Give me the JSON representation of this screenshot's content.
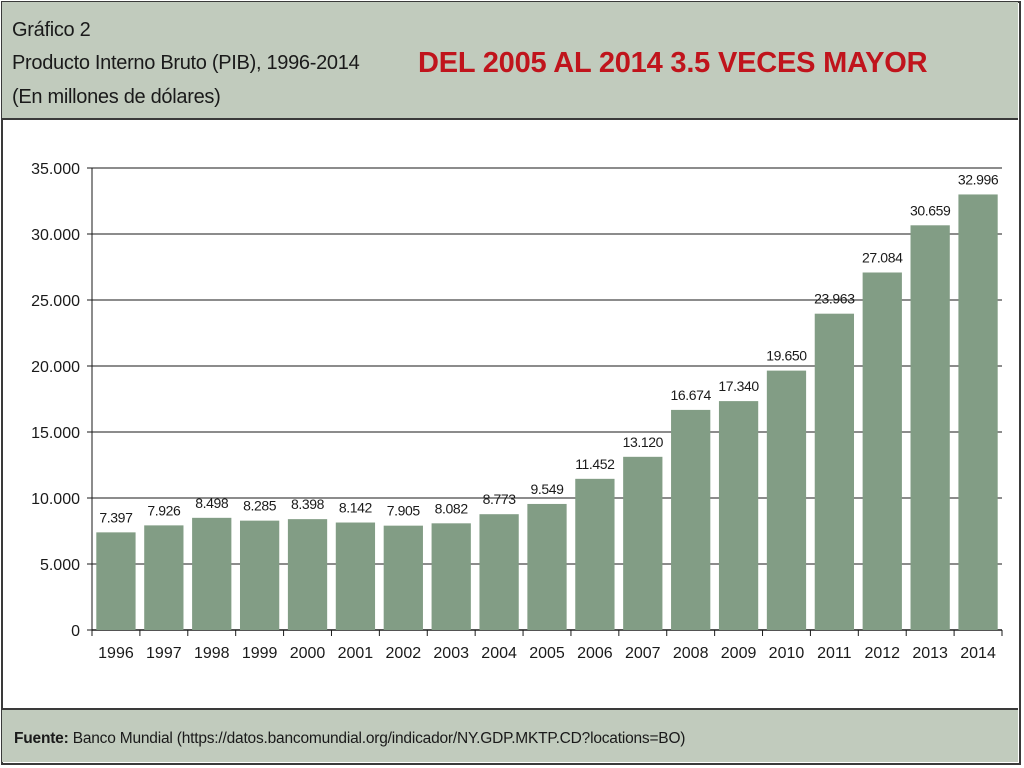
{
  "header": {
    "line1": "Gráfico 2",
    "line2": "Producto Interno Bruto (PIB), 1996-2014",
    "line3": "(En millones de dólares)",
    "highlight": "DEL 2005 AL 2014 3.5 VECES MAYOR"
  },
  "footer": {
    "label": "Fuente:",
    "text": "Banco Mundial (https://datos.bancomundial.org/indicador/NY.GDP.MKTP.CD?locations=BO)"
  },
  "colors": {
    "bar": "#829d85",
    "header_bg": "#c1cbbd",
    "highlight": "#c0141c"
  },
  "chart_data": {
    "type": "bar",
    "title": "Producto Interno Bruto (PIB), 1996-2014",
    "xlabel": "",
    "ylabel": "",
    "categories": [
      "1996",
      "1997",
      "1998",
      "1999",
      "2000",
      "2001",
      "2002",
      "2003",
      "2004",
      "2005",
      "2006",
      "2007",
      "2008",
      "2009",
      "2010",
      "2011",
      "2012",
      "2013",
      "2014"
    ],
    "values": [
      7397,
      7926,
      8498,
      8285,
      8398,
      8142,
      7905,
      8082,
      8773,
      9549,
      11452,
      13120,
      16674,
      17340,
      19650,
      23963,
      27084,
      30659,
      32996
    ],
    "value_labels": [
      "7.397",
      "7.926",
      "8.498",
      "8.285",
      "8.398",
      "8.142",
      "7.905",
      "8.082",
      "8.773",
      "9.549",
      "11.452",
      "13.120",
      "16.674",
      "17.340",
      "19.650",
      "23.963",
      "27.084",
      "30.659",
      "32.996"
    ],
    "y_ticks": [
      0,
      5000,
      10000,
      15000,
      20000,
      25000,
      30000,
      35000
    ],
    "y_tick_labels": [
      "0",
      "5.000",
      "10.000",
      "15.000",
      "20.000",
      "25.000",
      "30.000",
      "35.000"
    ],
    "ylim": [
      0,
      35000
    ],
    "grid": true,
    "legend": "none"
  }
}
